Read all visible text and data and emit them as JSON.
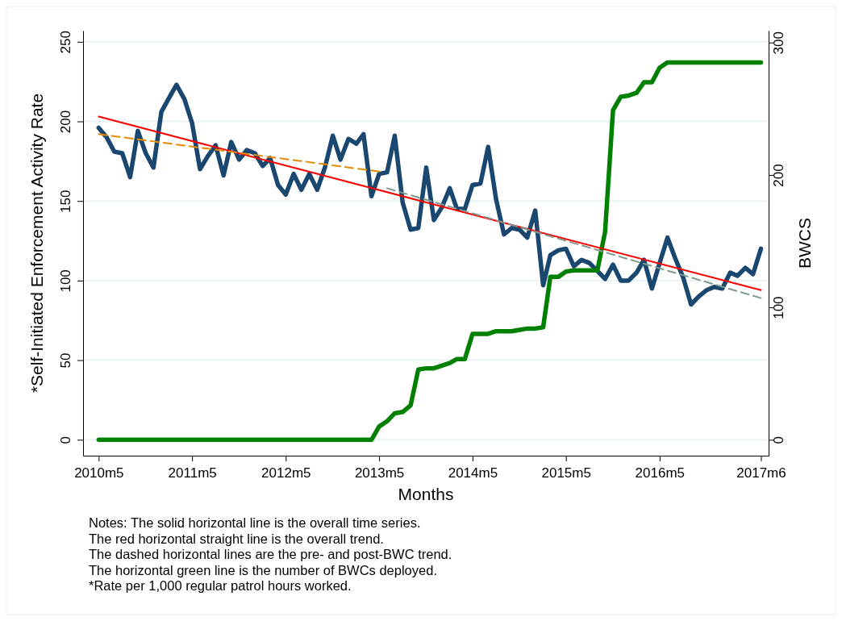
{
  "chart_data": {
    "type": "line",
    "xlabel": "Months",
    "ylabel": "*Self-Initiated Enforcement Activity Rate",
    "y2label": "BWCS",
    "x": [
      "2010-05",
      "2010-06",
      "2010-07",
      "2010-08",
      "2010-09",
      "2010-10",
      "2010-11",
      "2010-12",
      "2011-01",
      "2011-02",
      "2011-03",
      "2011-04",
      "2011-05",
      "2011-06",
      "2011-07",
      "2011-08",
      "2011-09",
      "2011-10",
      "2011-11",
      "2011-12",
      "2012-01",
      "2012-02",
      "2012-03",
      "2012-04",
      "2012-05",
      "2012-06",
      "2012-07",
      "2012-08",
      "2012-09",
      "2012-10",
      "2012-11",
      "2012-12",
      "2013-01",
      "2013-02",
      "2013-03",
      "2013-04",
      "2013-05",
      "2013-06",
      "2013-07",
      "2013-08",
      "2013-09",
      "2013-10",
      "2013-11",
      "2013-12",
      "2014-01",
      "2014-02",
      "2014-03",
      "2014-04",
      "2014-05",
      "2014-06",
      "2014-07",
      "2014-08",
      "2014-09",
      "2014-10",
      "2014-11",
      "2014-12",
      "2015-01",
      "2015-02",
      "2015-03",
      "2015-04",
      "2015-05",
      "2015-06",
      "2015-07",
      "2015-08",
      "2015-09",
      "2015-10",
      "2015-11",
      "2015-12",
      "2016-01",
      "2016-02",
      "2016-03",
      "2016-04",
      "2016-05",
      "2016-06",
      "2016-07",
      "2016-08",
      "2016-09",
      "2016-10",
      "2016-11",
      "2016-12",
      "2017-01",
      "2017-02",
      "2017-03",
      "2017-04",
      "2017-05",
      "2017-06"
    ],
    "series": [
      {
        "color": "#1a476f",
        "values": [
          196,
          190,
          181,
          180,
          165,
          194,
          180,
          171,
          206,
          215,
          223,
          214,
          199,
          170,
          178,
          185,
          166,
          187,
          176,
          182,
          180,
          172,
          177,
          160,
          154,
          167,
          157,
          167,
          157,
          171,
          191,
          176,
          189,
          186,
          192,
          153,
          167,
          168,
          191,
          149,
          132,
          133,
          171,
          138,
          146,
          158,
          145,
          145,
          160,
          161,
          184,
          151,
          129,
          133,
          132,
          127,
          144,
          97,
          116,
          119,
          120,
          109,
          113,
          111,
          106,
          101,
          110,
          100,
          100,
          105,
          113,
          95,
          111,
          127,
          114,
          102,
          85,
          90,
          94,
          96,
          95,
          105,
          103,
          108,
          104,
          120
        ]
      },
      {
        "color": "#008000",
        "axis": "y2",
        "values": [
          0,
          0,
          0,
          0,
          0,
          0,
          0,
          0,
          0,
          0,
          0,
          0,
          0,
          0,
          0,
          0,
          0,
          0,
          0,
          0,
          0,
          0,
          0,
          0,
          0,
          0,
          0,
          0,
          0,
          0,
          0,
          0,
          0,
          0,
          0,
          0,
          10,
          14,
          20,
          21,
          26,
          53,
          54,
          54,
          56,
          58,
          61,
          61,
          80,
          80,
          80,
          82,
          82,
          82,
          83,
          84,
          84,
          85,
          123,
          123,
          127,
          128,
          128,
          128,
          128,
          157,
          249,
          259,
          260,
          262,
          270,
          270,
          281,
          285,
          285,
          285,
          285,
          285,
          285,
          285,
          285,
          285,
          285,
          285,
          285,
          285
        ]
      },
      {
        "color": "#ff0000",
        "x": [
          "2010-05",
          "2017-06"
        ],
        "values": [
          203,
          94
        ]
      },
      {
        "color": "#e68a00",
        "line_style": "dashed",
        "x": [
          "2010-05",
          "2013-05"
        ],
        "values": [
          192,
          168.5
        ]
      },
      {
        "color": "#7f9a8c",
        "line_style": "dashed",
        "x": [
          "2013-06",
          "2017-06"
        ],
        "values": [
          158,
          89
        ]
      }
    ],
    "xlim": [
      "2010-03",
      "2017-07"
    ],
    "xticks": [
      {
        "value": "2010-05",
        "label": "2010m5"
      },
      {
        "value": "2011-05",
        "label": "2011m5"
      },
      {
        "value": "2012-05",
        "label": "2012m5"
      },
      {
        "value": "2013-05",
        "label": "2013m5"
      },
      {
        "value": "2014-05",
        "label": "2014m5"
      },
      {
        "value": "2015-05",
        "label": "2015m5"
      },
      {
        "value": "2016-05",
        "label": "2016m5"
      },
      {
        "value": "2017-06",
        "label": "2017m6"
      }
    ],
    "ylim": [
      -10,
      257
    ],
    "yticks": [
      0,
      50,
      100,
      150,
      200,
      250
    ],
    "y2lim": [
      -12,
      309
    ],
    "y2ticks": [
      0,
      100,
      200,
      300
    ],
    "grid": "y",
    "marker": "none",
    "line_style": "solid",
    "annotations": [
      "Notes: The solid horizontal line is the overall time series.",
      "The red horizontal straight line is the overall trend.",
      "The dashed horizontal lines are the pre- and post-BWC trend.",
      "The horizontal green line is the number of BWCs deployed.",
      "*Rate per 1,000 regular patrol hours worked."
    ]
  }
}
